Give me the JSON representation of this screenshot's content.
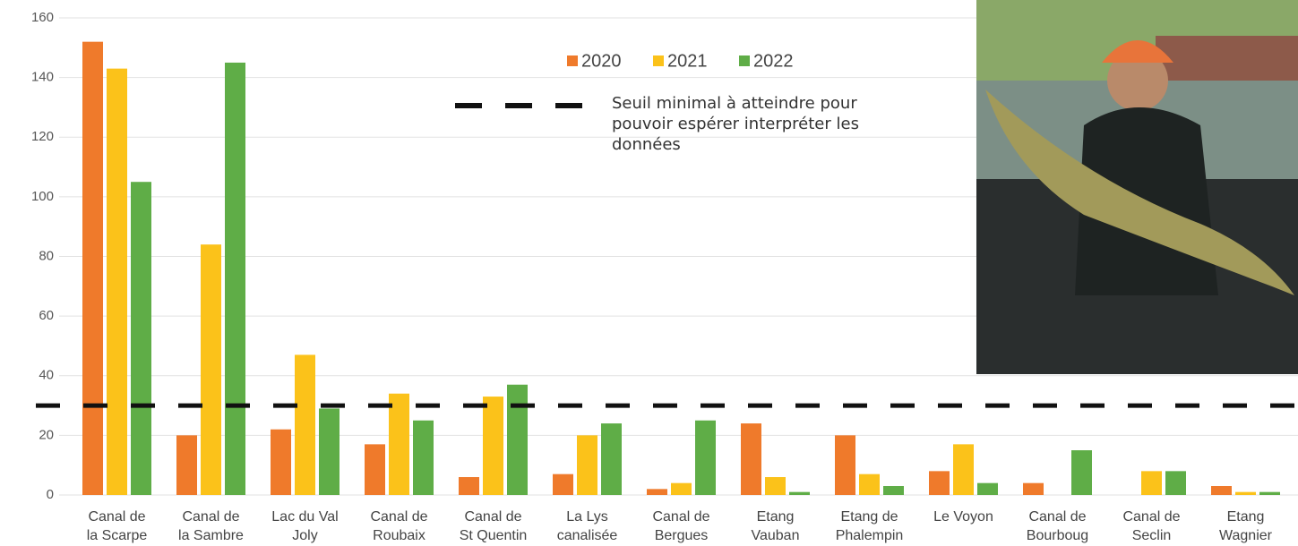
{
  "chart_data": {
    "type": "bar",
    "categories": [
      [
        "Canal de",
        "la Scarpe"
      ],
      [
        "Canal de",
        "la Sambre"
      ],
      [
        "Lac du Val",
        "Joly"
      ],
      [
        "Canal de",
        "Roubaix"
      ],
      [
        "Canal de",
        "St Quentin"
      ],
      [
        "La Lys",
        "canalisée"
      ],
      [
        "Canal de",
        "Bergues"
      ],
      [
        "Etang",
        "Vauban"
      ],
      [
        "Etang de",
        "Phalempin"
      ],
      [
        "Le Voyon"
      ],
      [
        "Canal de",
        "Bourboug"
      ],
      [
        "Canal de",
        "Seclin"
      ],
      [
        "Etang",
        "Wagnier"
      ]
    ],
    "series": [
      {
        "name": "2020",
        "color": "#ef7a2b",
        "values": [
          152,
          20,
          22,
          17,
          6,
          7,
          2,
          24,
          20,
          8,
          4,
          0,
          3
        ]
      },
      {
        "name": "2021",
        "color": "#fbc21a",
        "values": [
          143,
          84,
          47,
          34,
          33,
          20,
          4,
          6,
          7,
          17,
          0,
          8,
          1
        ]
      },
      {
        "name": "2022",
        "color": "#5fad47",
        "values": [
          105,
          145,
          29,
          25,
          37,
          24,
          25,
          1,
          3,
          4,
          15,
          8,
          1
        ]
      }
    ],
    "threshold": {
      "value": 30,
      "label": "Seuil minimal à atteindre pour pouvoir espérer interpréter les données"
    },
    "ylim": [
      0,
      160
    ],
    "yticks": [
      0,
      20,
      40,
      60,
      80,
      100,
      120,
      140,
      160
    ],
    "grid": true
  }
}
